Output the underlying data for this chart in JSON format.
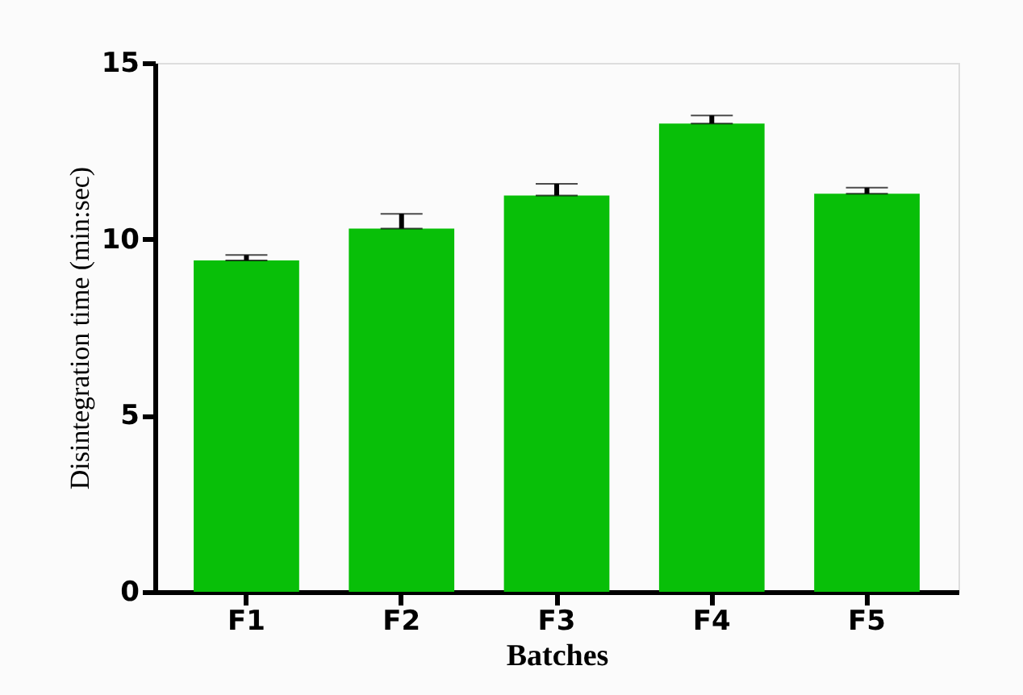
{
  "chart_data": {
    "type": "bar",
    "xlabel": "Batches",
    "ylabel": "Disintegration time (min:sec)",
    "categories": [
      "F1",
      "F2",
      "F3",
      "F4",
      "F5"
    ],
    "values": [
      9.4,
      10.3,
      11.24,
      13.28,
      11.29
    ],
    "errors": [
      [
        9.4,
        9.55
      ],
      [
        10.3,
        10.72
      ],
      [
        11.24,
        11.57
      ],
      [
        13.28,
        13.51
      ],
      [
        11.29,
        11.46
      ]
    ],
    "color": "#08bf08",
    "ylim": [
      0,
      15
    ],
    "yticks": [
      0,
      5,
      10,
      15
    ],
    "grid": false
  }
}
